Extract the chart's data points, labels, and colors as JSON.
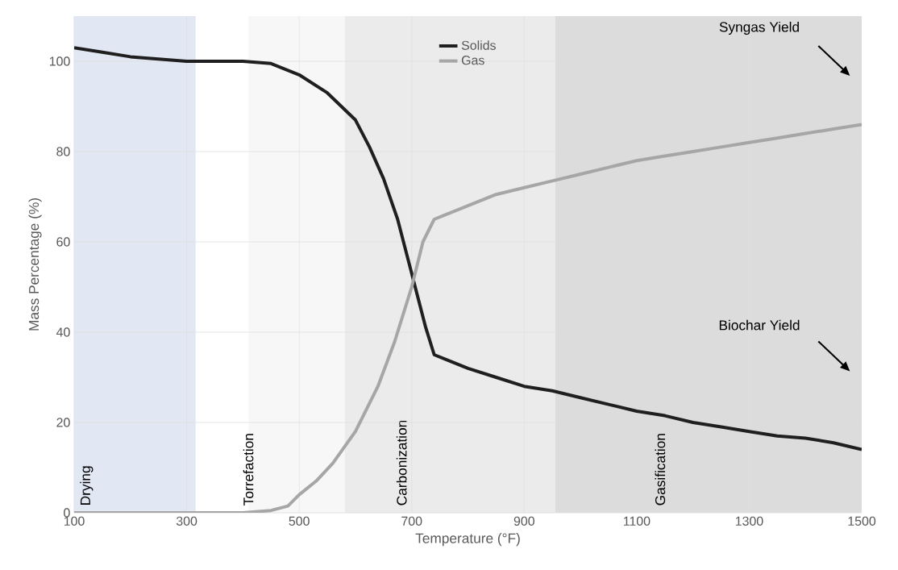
{
  "chart_data": {
    "type": "line",
    "xlabel": "Temperature (°F)",
    "ylabel": "Mass Percentage (%)",
    "xlim": [
      100,
      1500
    ],
    "ylim": [
      0,
      110
    ],
    "xticks": [
      100,
      300,
      500,
      700,
      900,
      1100,
      1300,
      1500
    ],
    "yticks": [
      0,
      20,
      40,
      60,
      80,
      100
    ],
    "grid": true,
    "legend": "top",
    "line_style": "solid",
    "marker": "none",
    "series": [
      {
        "name": "Solids",
        "color": "#1f1f1f",
        "x": [
          100,
          150,
          200,
          250,
          300,
          350,
          400,
          450,
          500,
          550,
          600,
          625,
          650,
          675,
          700,
          725,
          740,
          760,
          800,
          850,
          900,
          950,
          1000,
          1050,
          1100,
          1150,
          1200,
          1250,
          1300,
          1350,
          1400,
          1450,
          1500
        ],
        "values": [
          103,
          102,
          101,
          100.5,
          100,
          100,
          100,
          99.5,
          97,
          93,
          87,
          81,
          74,
          65,
          53,
          41,
          35,
          34,
          32,
          30,
          28,
          27,
          25.5,
          24,
          22.5,
          21.5,
          20,
          19,
          18,
          17,
          16.5,
          15.5,
          14
        ]
      },
      {
        "name": "Gas",
        "color": "#a6a6a6",
        "x": [
          100,
          200,
          300,
          400,
          450,
          480,
          500,
          530,
          560,
          600,
          640,
          670,
          700,
          720,
          740,
          760,
          800,
          850,
          900,
          950,
          1000,
          1050,
          1100,
          1150,
          1200,
          1250,
          1300,
          1350,
          1400,
          1450,
          1500
        ],
        "values": [
          0,
          0,
          0,
          0,
          0.5,
          1.5,
          4,
          7,
          11,
          18,
          28,
          38,
          50,
          60,
          65,
          66,
          68,
          70.5,
          72,
          73.5,
          75,
          76.5,
          78,
          79,
          80,
          81,
          82,
          83,
          84,
          85,
          86
        ]
      }
    ],
    "bands": [
      {
        "axis": "x",
        "from": 100,
        "to": 316,
        "label": "Drying",
        "color": "#e1e7f3"
      },
      {
        "axis": "x",
        "from": 410,
        "to": 581,
        "label": "Torrefaction",
        "color": "#f7f7f7"
      },
      {
        "axis": "x",
        "from": 581,
        "to": 955,
        "label": "Carbonization",
        "color": "#ebebeb"
      },
      {
        "axis": "x",
        "from": 955,
        "to": 1500,
        "label": "Gasification",
        "color": "#dcdcdc"
      }
    ],
    "annotations": [
      "Syngas Yield",
      "Biochar Yield"
    ]
  }
}
